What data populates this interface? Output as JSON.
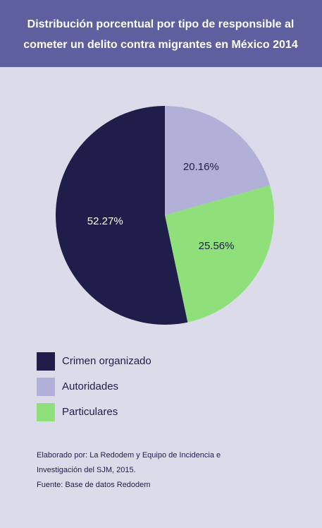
{
  "chart_data": {
    "type": "pie",
    "title": [
      "Distribución porcentual por tipo de responsible al",
      "cometer un delito contra migrantes en México 2014"
    ],
    "categories": [
      "Autoridades",
      "Particulares",
      "Crimen organizado"
    ],
    "values": [
      20.16,
      25.56,
      52.27
    ],
    "value_labels": [
      "20.16%",
      "25.56%",
      "52.27%"
    ],
    "colors": [
      "#b1b0d8",
      "#8fe07a",
      "#1f1d4a"
    ],
    "legend_order": [
      2,
      0,
      1
    ],
    "notes": [
      "Elaborado por: La Redodem y Equipo de Incidencia e",
      "Investigación del SJM, 2015.",
      "Fuente: Base de datos Redodem"
    ]
  }
}
